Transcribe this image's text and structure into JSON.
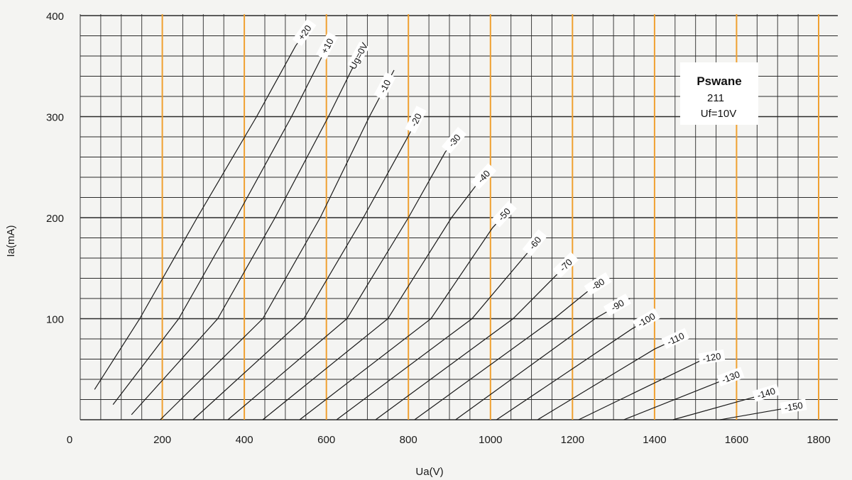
{
  "chart_data": {
    "type": "line",
    "title": "",
    "xlabel": "Ua(V)",
    "ylabel": "Ia(mA)",
    "xlim": [
      0,
      1800
    ],
    "ylim": [
      0,
      400
    ],
    "x_ticks": [
      "0",
      "200",
      "400",
      "600",
      "800",
      "1000",
      "1200",
      "1400",
      "1600",
      "1800"
    ],
    "y_ticks": [
      "100",
      "200",
      "300",
      "400"
    ],
    "grid": true,
    "annotation": {
      "brand": "Pswane",
      "model": "211",
      "filament": "Uf=10V"
    },
    "colors": {
      "grid": "#2a2a2a",
      "major_vertical": "#f0a030",
      "curve": "#1a1a1a",
      "background": "#f4f4f2"
    },
    "series": [
      {
        "name": "+20",
        "points": [
          [
            35,
            30
          ],
          [
            145,
            100
          ],
          [
            285,
            200
          ],
          [
            430,
            300
          ],
          [
            525,
            370
          ],
          [
            560,
            390
          ]
        ]
      },
      {
        "name": "+10",
        "points": [
          [
            80,
            15
          ],
          [
            240,
            100
          ],
          [
            380,
            200
          ],
          [
            515,
            300
          ],
          [
            590,
            360
          ],
          [
            610,
            375
          ]
        ]
      },
      {
        "name": "Ug=0V",
        "points": [
          [
            125,
            5
          ],
          [
            335,
            100
          ],
          [
            475,
            200
          ],
          [
            605,
            300
          ],
          [
            660,
            345
          ],
          [
            690,
            368
          ]
        ]
      },
      {
        "name": "-10",
        "points": [
          [
            195,
            0
          ],
          [
            445,
            100
          ],
          [
            585,
            200
          ],
          [
            705,
            300
          ],
          [
            765,
            346
          ]
        ]
      },
      {
        "name": "-20",
        "points": [
          [
            275,
            0
          ],
          [
            545,
            100
          ],
          [
            690,
            200
          ],
          [
            800,
            281
          ],
          [
            830,
            305
          ]
        ]
      },
      {
        "name": "-30",
        "points": [
          [
            360,
            0
          ],
          [
            650,
            100
          ],
          [
            800,
            200
          ],
          [
            890,
            265
          ],
          [
            925,
            282
          ]
        ]
      },
      {
        "name": "-40",
        "points": [
          [
            445,
            0
          ],
          [
            750,
            100
          ],
          [
            905,
            200
          ],
          [
            965,
            232
          ],
          [
            995,
            245
          ]
        ]
      },
      {
        "name": "-50",
        "points": [
          [
            535,
            0
          ],
          [
            855,
            100
          ],
          [
            1005,
            190
          ],
          [
            1050,
            210
          ]
        ]
      },
      {
        "name": "-60",
        "points": [
          [
            625,
            0
          ],
          [
            955,
            100
          ],
          [
            1090,
            165
          ],
          [
            1120,
            180
          ]
        ]
      },
      {
        "name": "-70",
        "points": [
          [
            720,
            0
          ],
          [
            1055,
            100
          ],
          [
            1165,
            145
          ],
          [
            1195,
            157
          ]
        ]
      },
      {
        "name": "-80",
        "points": [
          [
            815,
            0
          ],
          [
            1155,
            100
          ],
          [
            1240,
            128
          ],
          [
            1275,
            137
          ]
        ]
      },
      {
        "name": "-90",
        "points": [
          [
            915,
            0
          ],
          [
            1255,
            100
          ],
          [
            1340,
            120
          ]
        ]
      },
      {
        "name": "-100",
        "points": [
          [
            1015,
            0
          ],
          [
            1345,
            90
          ],
          [
            1400,
            103
          ]
        ]
      },
      {
        "name": "-110",
        "points": [
          [
            1115,
            0
          ],
          [
            1400,
            70
          ],
          [
            1480,
            85
          ]
        ]
      },
      {
        "name": "-120",
        "points": [
          [
            1215,
            0
          ],
          [
            1520,
            60
          ],
          [
            1550,
            62
          ]
        ]
      },
      {
        "name": "-130",
        "points": [
          [
            1325,
            0
          ],
          [
            1560,
            38
          ],
          [
            1600,
            44
          ]
        ]
      },
      {
        "name": "-140",
        "points": [
          [
            1445,
            0
          ],
          [
            1640,
            22
          ],
          [
            1690,
            28
          ]
        ]
      },
      {
        "name": "-150",
        "points": [
          [
            1560,
            0
          ],
          [
            1700,
            10
          ],
          [
            1760,
            14
          ]
        ]
      }
    ]
  }
}
